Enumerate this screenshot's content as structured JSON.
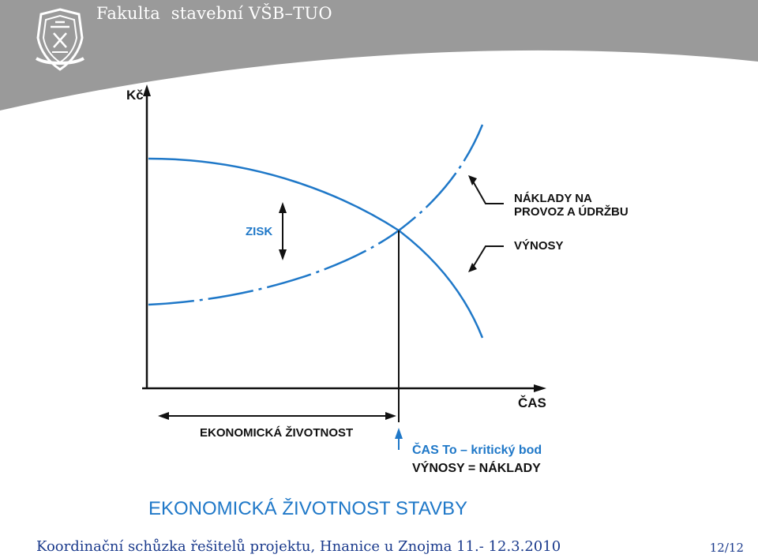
{
  "header": {
    "title": "Fakulta  stavební VŠB–TUO",
    "band_color": "#9a9a9a",
    "logo_icon": "faculty-emblem-icon"
  },
  "diagram": {
    "y_axis_label": "Kč",
    "x_axis_label": "ČAS",
    "profit_label": "ZISK",
    "cost_curve_label_line1": "NÁKLADY NA",
    "cost_curve_label_line2": "PROVOZ A ÚDRŽBU",
    "revenue_curve_label": "VÝNOSY",
    "life_span_label": "EKONOMICKÁ ŽIVOTNOST",
    "critical_point_line1": "ČAS To  –  kritický  bod",
    "critical_point_line2": "VÝNOSY = NÁKLADY",
    "big_title": "EKONOMICKÁ ŽIVOTNOST STAVBY",
    "curve_color": "#1f78c8",
    "ink_color": "#111111"
  },
  "footer": {
    "text": "Koordinační schůzka řešitelů projektu, Hnanice u Znojma 11.- 12.3.2010",
    "page": "12/12",
    "text_color": "#1a3a8c"
  }
}
